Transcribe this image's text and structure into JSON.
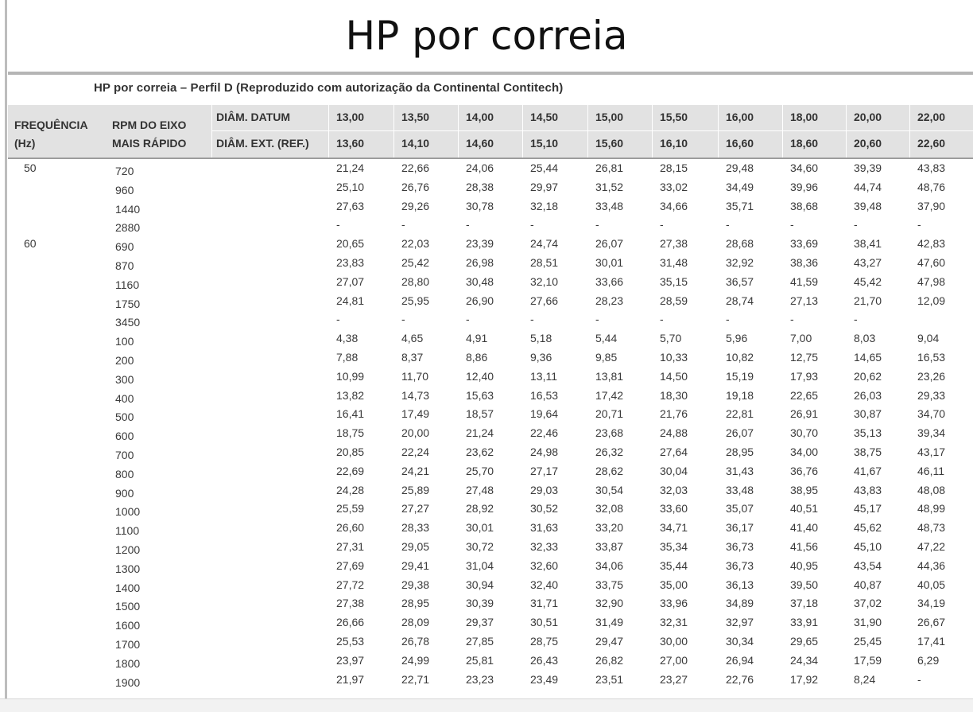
{
  "title": "HP por correia",
  "caption": "HP por correia – Perfil D (Reproduzido com autorização da Continental Contitech)",
  "headers": {
    "frequencia": [
      "FREQUÊNCIA",
      "(Hz)"
    ],
    "rpm": [
      "RPM DO EIXO",
      "MAIS RÁPIDO"
    ],
    "datum": "DIÂM. DATUM",
    "ext": "DIÂM. EXT. (REF.)"
  },
  "datum_values": [
    "13,00",
    "13,50",
    "14,00",
    "14,50",
    "15,00",
    "15,50",
    "16,00",
    "18,00",
    "20,00",
    "22,00"
  ],
  "ext_values": [
    "13,60",
    "14,10",
    "14,60",
    "15,10",
    "15,60",
    "16,10",
    "16,60",
    "18,60",
    "20,60",
    "22,60"
  ],
  "rows": [
    {
      "freq": "50",
      "rpm": "720",
      "values": [
        "21,24",
        "22,66",
        "24,06",
        "25,44",
        "26,81",
        "28,15",
        "29,48",
        "34,60",
        "39,39",
        "43,83"
      ]
    },
    {
      "freq": "",
      "rpm": "960",
      "values": [
        "25,10",
        "26,76",
        "28,38",
        "29,97",
        "31,52",
        "33,02",
        "34,49",
        "39,96",
        "44,74",
        "48,76"
      ]
    },
    {
      "freq": "",
      "rpm": "1440",
      "values": [
        "27,63",
        "29,26",
        "30,78",
        "32,18",
        "33,48",
        "34,66",
        "35,71",
        "38,68",
        "39,48",
        "37,90"
      ]
    },
    {
      "freq": "",
      "rpm": "2880",
      "values": [
        "-",
        "-",
        "-",
        "-",
        "-",
        "-",
        "-",
        "-",
        "-",
        "-"
      ]
    },
    {
      "freq": "60",
      "rpm": "690",
      "values": [
        "20,65",
        "22,03",
        "23,39",
        "24,74",
        "26,07",
        "27,38",
        "28,68",
        "33,69",
        "38,41",
        "42,83"
      ]
    },
    {
      "freq": "",
      "rpm": "870",
      "values": [
        "23,83",
        "25,42",
        "26,98",
        "28,51",
        "30,01",
        "31,48",
        "32,92",
        "38,36",
        "43,27",
        "47,60"
      ]
    },
    {
      "freq": "",
      "rpm": "1160",
      "values": [
        "27,07",
        "28,80",
        "30,48",
        "32,10",
        "33,66",
        "35,15",
        "36,57",
        "41,59",
        "45,42",
        "47,98"
      ]
    },
    {
      "freq": "",
      "rpm": "1750",
      "values": [
        "24,81",
        "25,95",
        "26,90",
        "27,66",
        "28,23",
        "28,59",
        "28,74",
        "27,13",
        "21,70",
        "12,09"
      ]
    },
    {
      "freq": "",
      "rpm": "3450",
      "values": [
        "-",
        "-",
        "-",
        "-",
        "-",
        "-",
        "-",
        "-",
        "-",
        ""
      ]
    },
    {
      "freq": "",
      "rpm": "100",
      "values": [
        "4,38",
        "4,65",
        "4,91",
        "5,18",
        "5,44",
        "5,70",
        "5,96",
        "7,00",
        "8,03",
        "9,04"
      ]
    },
    {
      "freq": "",
      "rpm": "200",
      "values": [
        "7,88",
        "8,37",
        "8,86",
        "9,36",
        "9,85",
        "10,33",
        "10,82",
        "12,75",
        "14,65",
        "16,53"
      ]
    },
    {
      "freq": "",
      "rpm": "300",
      "values": [
        "10,99",
        "11,70",
        "12,40",
        "13,11",
        "13,81",
        "14,50",
        "15,19",
        "17,93",
        "20,62",
        "23,26"
      ]
    },
    {
      "freq": "",
      "rpm": "400",
      "values": [
        "13,82",
        "14,73",
        "15,63",
        "16,53",
        "17,42",
        "18,30",
        "19,18",
        "22,65",
        "26,03",
        "29,33"
      ]
    },
    {
      "freq": "",
      "rpm": "500",
      "values": [
        "16,41",
        "17,49",
        "18,57",
        "19,64",
        "20,71",
        "21,76",
        "22,81",
        "26,91",
        "30,87",
        "34,70"
      ]
    },
    {
      "freq": "",
      "rpm": "600",
      "values": [
        "18,75",
        "20,00",
        "21,24",
        "22,46",
        "23,68",
        "24,88",
        "26,07",
        "30,70",
        "35,13",
        "39,34"
      ]
    },
    {
      "freq": "",
      "rpm": "700",
      "values": [
        "20,85",
        "22,24",
        "23,62",
        "24,98",
        "26,32",
        "27,64",
        "28,95",
        "34,00",
        "38,75",
        "43,17"
      ]
    },
    {
      "freq": "",
      "rpm": "800",
      "values": [
        "22,69",
        "24,21",
        "25,70",
        "27,17",
        "28,62",
        "30,04",
        "31,43",
        "36,76",
        "41,67",
        "46,11"
      ]
    },
    {
      "freq": "",
      "rpm": "900",
      "values": [
        "24,28",
        "25,89",
        "27,48",
        "29,03",
        "30,54",
        "32,03",
        "33,48",
        "38,95",
        "43,83",
        "48,08"
      ]
    },
    {
      "freq": "",
      "rpm": "1000",
      "values": [
        "25,59",
        "27,27",
        "28,92",
        "30,52",
        "32,08",
        "33,60",
        "35,07",
        "40,51",
        "45,17",
        "48,99"
      ]
    },
    {
      "freq": "",
      "rpm": "1100",
      "values": [
        "26,60",
        "28,33",
        "30,01",
        "31,63",
        "33,20",
        "34,71",
        "36,17",
        "41,40",
        "45,62",
        "48,73"
      ]
    },
    {
      "freq": "",
      "rpm": "1200",
      "values": [
        "27,31",
        "29,05",
        "30,72",
        "32,33",
        "33,87",
        "35,34",
        "36,73",
        "41,56",
        "45,10",
        "47,22"
      ]
    },
    {
      "freq": "",
      "rpm": "1300",
      "values": [
        "27,69",
        "29,41",
        "31,04",
        "32,60",
        "34,06",
        "35,44",
        "36,73",
        "40,95",
        "43,54",
        "44,36"
      ]
    },
    {
      "freq": "",
      "rpm": "1400",
      "values": [
        "27,72",
        "29,38",
        "30,94",
        "32,40",
        "33,75",
        "35,00",
        "36,13",
        "39,50",
        "40,87",
        "40,05"
      ]
    },
    {
      "freq": "",
      "rpm": "1500",
      "values": [
        "27,38",
        "28,95",
        "30,39",
        "31,71",
        "32,90",
        "33,96",
        "34,89",
        "37,18",
        "37,02",
        "34,19"
      ]
    },
    {
      "freq": "",
      "rpm": "1600",
      "values": [
        "26,66",
        "28,09",
        "29,37",
        "30,51",
        "31,49",
        "32,31",
        "32,97",
        "33,91",
        "31,90",
        "26,67"
      ]
    },
    {
      "freq": "",
      "rpm": "1700",
      "values": [
        "25,53",
        "26,78",
        "27,85",
        "28,75",
        "29,47",
        "30,00",
        "30,34",
        "29,65",
        "25,45",
        "17,41"
      ]
    },
    {
      "freq": "",
      "rpm": "1800",
      "values": [
        "23,97",
        "24,99",
        "25,81",
        "26,43",
        "26,82",
        "27,00",
        "26,94",
        "24,34",
        "17,59",
        "6,29"
      ]
    },
    {
      "freq": "",
      "rpm": "1900",
      "values": [
        "21,97",
        "22,71",
        "23,23",
        "23,49",
        "23,51",
        "23,27",
        "22,76",
        "17,92",
        "8,24",
        "-"
      ]
    }
  ]
}
